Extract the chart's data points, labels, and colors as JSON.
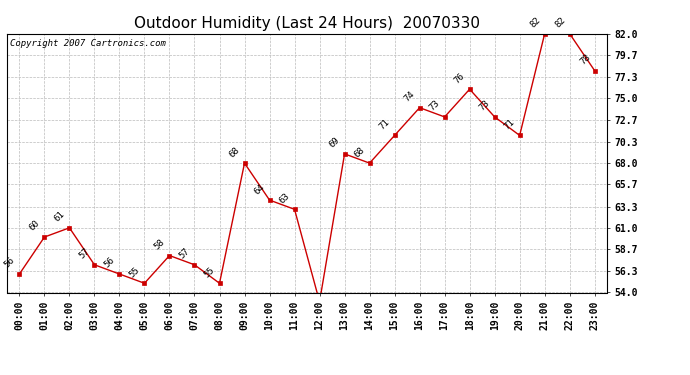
{
  "title": "Outdoor Humidity (Last 24 Hours)  20070330",
  "copyright": "Copyright 2007 Cartronics.com",
  "x_labels": [
    "00:00",
    "01:00",
    "02:00",
    "03:00",
    "04:00",
    "05:00",
    "06:00",
    "07:00",
    "08:00",
    "09:00",
    "10:00",
    "11:00",
    "12:00",
    "13:00",
    "14:00",
    "15:00",
    "16:00",
    "17:00",
    "18:00",
    "19:00",
    "20:00",
    "21:00",
    "22:00",
    "23:00"
  ],
  "y_values": [
    56,
    60,
    61,
    57,
    56,
    55,
    58,
    57,
    55,
    68,
    64,
    63,
    53,
    69,
    68,
    71,
    74,
    73,
    76,
    73,
    71,
    82,
    82,
    78
  ],
  "y_labels": [
    "54.0",
    "56.3",
    "58.7",
    "61.0",
    "63.3",
    "65.7",
    "68.0",
    "70.3",
    "72.7",
    "75.0",
    "77.3",
    "79.7",
    "82.0"
  ],
  "y_ticks": [
    54.0,
    56.3,
    58.7,
    61.0,
    63.3,
    65.7,
    68.0,
    70.3,
    72.7,
    75.0,
    77.3,
    79.7,
    82.0
  ],
  "ylim": [
    54.0,
    82.0
  ],
  "line_color": "#cc0000",
  "marker_color": "#cc0000",
  "bg_color": "#ffffff",
  "grid_color": "#bbbbbb",
  "title_fontsize": 11,
  "tick_fontsize": 7,
  "annotation_fontsize": 6.5,
  "copyright_fontsize": 6.5
}
